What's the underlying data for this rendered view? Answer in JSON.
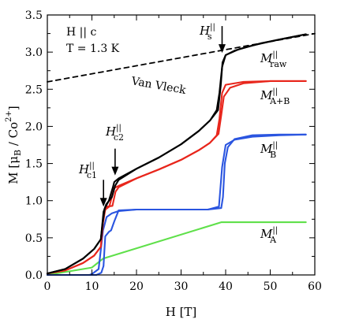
{
  "chart_data": {
    "type": "line",
    "xlabel": "H [T]",
    "ylabel": "M [μB / Co2+]",
    "ylabel_parts": {
      "main": "M [μ",
      "sub": "B",
      "mid": " / Co",
      "sup": "2+",
      "end": "]"
    },
    "xlim": [
      0,
      60
    ],
    "ylim": [
      0,
      3.5
    ],
    "x_ticks": [
      0,
      10,
      20,
      30,
      40,
      50,
      60
    ],
    "y_ticks": [
      "0.0",
      "0.5",
      "1.0",
      "1.5",
      "2.0",
      "2.5",
      "3.0",
      "3.5"
    ],
    "annotations": {
      "field_direction": "H || c",
      "temperature": "T = 1.3 K",
      "van_vleck": "Van Vleck",
      "hs": {
        "main": "H",
        "sup": "||",
        "sub": "s"
      },
      "hc1": {
        "main": "H",
        "sup": "||",
        "sub": "c1"
      },
      "hc2": {
        "main": "H",
        "sup": "||",
        "sub": "c2"
      }
    },
    "series": [
      {
        "name": "M raw",
        "label": {
          "main": "M",
          "sup": "||",
          "sub": "raw"
        },
        "color": "#000000",
        "style": "solid",
        "hysteresis": true,
        "up": [
          [
            0,
            0.02
          ],
          [
            4,
            0.08
          ],
          [
            8,
            0.22
          ],
          [
            10.5,
            0.35
          ],
          [
            12,
            0.48
          ],
          [
            12.6,
            0.85
          ],
          [
            13.2,
            0.95
          ],
          [
            14.5,
            1.05
          ],
          [
            15.2,
            1.2
          ],
          [
            16,
            1.28
          ],
          [
            20,
            1.43
          ],
          [
            25,
            1.58
          ],
          [
            30,
            1.76
          ],
          [
            34,
            1.94
          ],
          [
            36.5,
            2.08
          ],
          [
            38,
            2.22
          ],
          [
            38.6,
            2.45
          ],
          [
            39.2,
            2.8
          ],
          [
            40,
            2.96
          ],
          [
            43,
            3.04
          ],
          [
            48,
            3.12
          ],
          [
            53,
            3.18
          ],
          [
            58,
            3.24
          ]
        ],
        "down": [
          [
            58,
            3.24
          ],
          [
            52,
            3.17
          ],
          [
            46,
            3.09
          ],
          [
            42,
            3.02
          ],
          [
            40,
            2.96
          ],
          [
            39.3,
            2.86
          ],
          [
            38.9,
            2.55
          ],
          [
            38.3,
            2.22
          ],
          [
            36.5,
            2.08
          ],
          [
            34,
            1.94
          ],
          [
            30,
            1.76
          ],
          [
            25,
            1.58
          ],
          [
            20,
            1.43
          ],
          [
            16,
            1.3
          ],
          [
            15,
            1.25
          ],
          [
            14.7,
            1.18
          ],
          [
            13.8,
            1.0
          ],
          [
            12.9,
            0.9
          ],
          [
            12.4,
            0.7
          ],
          [
            12,
            0.48
          ],
          [
            10.5,
            0.35
          ],
          [
            8,
            0.22
          ],
          [
            4,
            0.08
          ],
          [
            0,
            0.02
          ]
        ]
      },
      {
        "name": "M A+B",
        "label": {
          "main": "M",
          "sup": "||",
          "sub": "A+B"
        },
        "color": "#e8261c",
        "style": "solid",
        "hysteresis": true,
        "up": [
          [
            0,
            0.02
          ],
          [
            4,
            0.06
          ],
          [
            8,
            0.16
          ],
          [
            10.5,
            0.26
          ],
          [
            12,
            0.38
          ],
          [
            12.6,
            0.82
          ],
          [
            13.3,
            0.92
          ],
          [
            14.6,
            0.93
          ],
          [
            15.3,
            1.12
          ],
          [
            16,
            1.18
          ],
          [
            20,
            1.3
          ],
          [
            25,
            1.42
          ],
          [
            30,
            1.55
          ],
          [
            34,
            1.68
          ],
          [
            36.5,
            1.78
          ],
          [
            38,
            1.88
          ],
          [
            38.6,
            2.1
          ],
          [
            39.2,
            2.45
          ],
          [
            40,
            2.56
          ],
          [
            44,
            2.6
          ],
          [
            50,
            2.61
          ],
          [
            58,
            2.61
          ]
        ],
        "down": [
          [
            58,
            2.61
          ],
          [
            50,
            2.61
          ],
          [
            44,
            2.58
          ],
          [
            41,
            2.52
          ],
          [
            39.6,
            2.4
          ],
          [
            39,
            2.15
          ],
          [
            38.4,
            1.9
          ],
          [
            36.5,
            1.78
          ],
          [
            34,
            1.68
          ],
          [
            30,
            1.55
          ],
          [
            25,
            1.42
          ],
          [
            20,
            1.3
          ],
          [
            16,
            1.2
          ],
          [
            15,
            1.17
          ],
          [
            14.6,
            1.08
          ],
          [
            13.9,
            0.92
          ],
          [
            13,
            0.88
          ],
          [
            12.5,
            0.7
          ],
          [
            12,
            0.38
          ],
          [
            10.5,
            0.26
          ],
          [
            8,
            0.16
          ],
          [
            4,
            0.06
          ],
          [
            0,
            0.02
          ]
        ]
      },
      {
        "name": "M B",
        "label": {
          "main": "M",
          "sup": "||",
          "sub": "B"
        },
        "color": "#2a55e0",
        "style": "solid",
        "hysteresis": true,
        "up": [
          [
            0,
            0.0
          ],
          [
            8,
            0.0
          ],
          [
            9.5,
            0.0
          ],
          [
            10.2,
            0.02
          ],
          [
            11.5,
            0.08
          ],
          [
            12.5,
            0.6
          ],
          [
            13.3,
            0.78
          ],
          [
            14.5,
            0.83
          ],
          [
            16,
            0.86
          ],
          [
            20,
            0.88
          ],
          [
            30,
            0.88
          ],
          [
            36,
            0.88
          ],
          [
            38.5,
            0.92
          ],
          [
            39.2,
            1.45
          ],
          [
            40,
            1.75
          ],
          [
            42,
            1.82
          ],
          [
            46,
            1.86
          ],
          [
            52,
            1.88
          ],
          [
            58,
            1.89
          ]
        ],
        "down": [
          [
            58,
            1.89
          ],
          [
            52,
            1.89
          ],
          [
            46,
            1.88
          ],
          [
            42,
            1.83
          ],
          [
            40.5,
            1.72
          ],
          [
            39.8,
            1.5
          ],
          [
            39.4,
            1.05
          ],
          [
            39,
            0.9
          ],
          [
            36,
            0.88
          ],
          [
            30,
            0.88
          ],
          [
            20,
            0.88
          ],
          [
            16,
            0.87
          ],
          [
            15,
            0.72
          ],
          [
            14.3,
            0.6
          ],
          [
            13.8,
            0.58
          ],
          [
            13,
            0.52
          ],
          [
            12.6,
            0.12
          ],
          [
            12.1,
            0.03
          ],
          [
            11,
            0.0
          ],
          [
            0,
            0.0
          ]
        ]
      },
      {
        "name": "M A",
        "label": {
          "main": "M",
          "sup": "||",
          "sub": "A"
        },
        "color": "#5fe04a",
        "style": "solid",
        "hysteresis": false,
        "up": [
          [
            0,
            0.0
          ],
          [
            10,
            0.1
          ],
          [
            12.5,
            0.22
          ],
          [
            39,
            0.71
          ],
          [
            58,
            0.71
          ]
        ],
        "down": []
      },
      {
        "name": "Van Vleck",
        "color": "#000000",
        "style": "dashed",
        "hysteresis": false,
        "up": [
          [
            0,
            2.6
          ],
          [
            60,
            3.25
          ]
        ],
        "down": []
      }
    ],
    "arrows": [
      {
        "label": "hs",
        "x": 39.2,
        "y_tip": 2.99
      },
      {
        "label": "hc1",
        "x": 12.6,
        "y_tip": 0.92
      },
      {
        "label": "hc2",
        "x": 15.2,
        "y_tip": 1.34
      }
    ],
    "grid": false,
    "legend": "inline labels"
  }
}
